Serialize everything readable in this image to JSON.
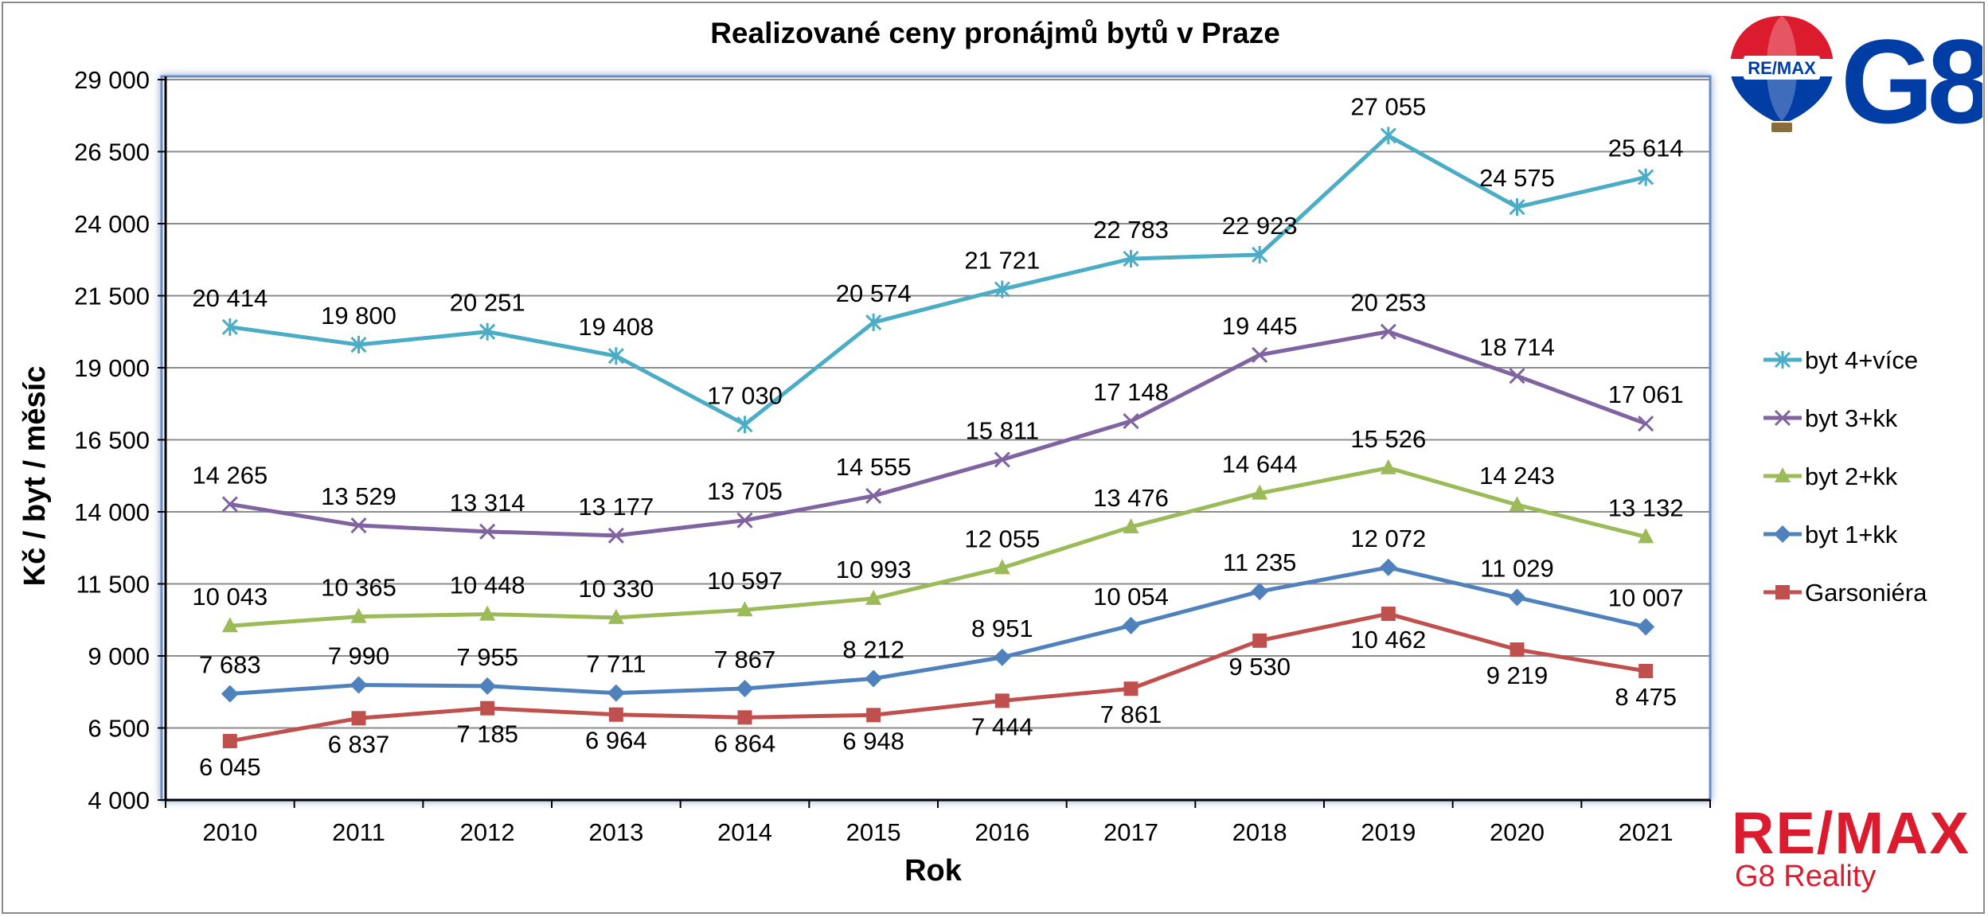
{
  "chart_data": {
    "type": "line",
    "title": "Realizované ceny pronájmů bytů v Praze",
    "xlabel": "Rok",
    "ylabel": "Kč / byt / měsíc",
    "ylim": [
      4000,
      29000
    ],
    "yticks": [
      4000,
      6500,
      9000,
      11500,
      14000,
      16500,
      19000,
      21500,
      24000,
      26500,
      29000
    ],
    "ytick_labels": [
      "4 000",
      "6 500",
      "9 000",
      "11 500",
      "14 000",
      "16 500",
      "19 000",
      "21 500",
      "24 000",
      "26 500",
      "29 000"
    ],
    "grid": true,
    "legend_position": "right",
    "categories": [
      "2010",
      "2011",
      "2012",
      "2013",
      "2014",
      "2015",
      "2016",
      "2017",
      "2018",
      "2019",
      "2020",
      "2021"
    ],
    "series": [
      {
        "name": "byt 4+více",
        "color": "#4bacc6",
        "marker": "star",
        "values": [
          20414,
          19800,
          20251,
          19408,
          17030,
          20574,
          21721,
          22783,
          22923,
          27055,
          24575,
          25614
        ],
        "labels": [
          "20 414",
          "19 800",
          "20 251",
          "19 408",
          "17 030",
          "20 574",
          "21 721",
          "22 783",
          "22 923",
          "27 055",
          "24 575",
          "25 614"
        ]
      },
      {
        "name": "byt 3+kk",
        "color": "#8064a2",
        "marker": "x",
        "values": [
          14265,
          13529,
          13314,
          13177,
          13705,
          14555,
          15811,
          17148,
          19445,
          20253,
          18714,
          17061
        ],
        "labels": [
          "14 265",
          "13 529",
          "13 314",
          "13 177",
          "13 705",
          "14 555",
          "15 811",
          "17 148",
          "19 445",
          "20 253",
          "18 714",
          "17 061"
        ]
      },
      {
        "name": "byt 2+kk",
        "color": "#9bbb59",
        "marker": "triangle",
        "values": [
          10043,
          10365,
          10448,
          10330,
          10597,
          10993,
          12055,
          13476,
          14644,
          15526,
          14243,
          13132
        ],
        "labels": [
          "10 043",
          "10 365",
          "10 448",
          "10 330",
          "10 597",
          "10 993",
          "12 055",
          "13 476",
          "14 644",
          "15 526",
          "14 243",
          "13 132"
        ]
      },
      {
        "name": "byt 1+kk",
        "color": "#4f81bd",
        "marker": "diamond",
        "values": [
          7683,
          7990,
          7955,
          7711,
          7867,
          8212,
          8951,
          10054,
          11235,
          12072,
          11029,
          10007
        ],
        "labels": [
          "7 683",
          "7 990",
          "7 955",
          "7 711",
          "7 867",
          "8 212",
          "8 951",
          "10 054",
          "11 235",
          "12 072",
          "11 029",
          "10 007"
        ]
      },
      {
        "name": "Garsoniéra",
        "color": "#c0504d",
        "marker": "square",
        "values": [
          6045,
          6837,
          7185,
          6964,
          6864,
          6948,
          7444,
          7861,
          9530,
          10462,
          9219,
          8475
        ],
        "labels": [
          "6 045",
          "6 837",
          "7 185",
          "6 964",
          "6 864",
          "6 948",
          "7 444",
          "7 861",
          "9 530",
          "10 462",
          "9 219",
          "8 475"
        ]
      }
    ]
  },
  "branding": {
    "balloon_logo_text": "RE/MAX",
    "g8_logo_text": "G8",
    "remax_logo_text": "RE/MAX",
    "remax_subtitle": "G8 Reality",
    "brand_red": "#dc1c2e",
    "brand_blue": "#003da5"
  }
}
